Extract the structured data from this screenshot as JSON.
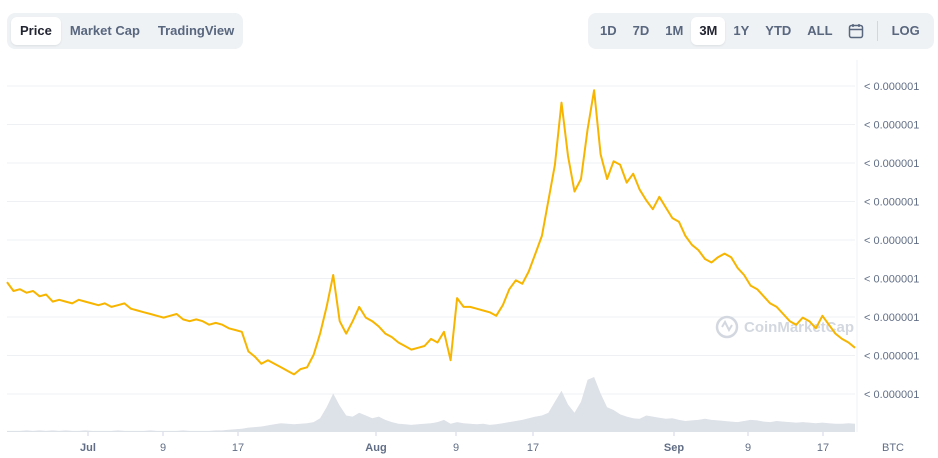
{
  "view_tabs": [
    {
      "label": "Price",
      "active": true
    },
    {
      "label": "Market Cap",
      "active": false
    },
    {
      "label": "TradingView",
      "active": false
    }
  ],
  "range_tabs": [
    {
      "label": "1D",
      "active": false
    },
    {
      "label": "7D",
      "active": false
    },
    {
      "label": "1M",
      "active": false
    },
    {
      "label": "3M",
      "active": true
    },
    {
      "label": "1Y",
      "active": false
    },
    {
      "label": "YTD",
      "active": false
    },
    {
      "label": "ALL",
      "active": false
    }
  ],
  "calendar_icon": "calendar-icon",
  "log_label": "LOG",
  "watermark": "CoinMarketCap",
  "colors": {
    "price_line": "#f7b500",
    "volume_fill": "#dde1e8",
    "grid": "#eef0f3",
    "axis_text": "#616e85"
  },
  "chart_data": {
    "type": "line",
    "y_tick_labels": [
      "< 0.000001",
      "< 0.000001",
      "< 0.000001",
      "< 0.000001",
      "< 0.000001",
      "< 0.000001",
      "< 0.000001",
      "< 0.000001",
      "< 0.000001"
    ],
    "x_tick_labels": [
      "Jul",
      "9",
      "17",
      "Aug",
      "9",
      "17",
      "Sep",
      "9",
      "17"
    ],
    "x_tick_bold": [
      true,
      false,
      false,
      true,
      false,
      false,
      true,
      false,
      false
    ],
    "currency_label": "BTC",
    "grid": true,
    "series": [
      {
        "values": [
          0.84,
          0.79,
          0.8,
          0.78,
          0.79,
          0.76,
          0.77,
          0.73,
          0.74,
          0.73,
          0.72,
          0.74,
          0.73,
          0.72,
          0.71,
          0.72,
          0.7,
          0.71,
          0.72,
          0.69,
          0.68,
          0.67,
          0.66,
          0.65,
          0.64,
          0.65,
          0.66,
          0.63,
          0.62,
          0.63,
          0.62,
          0.6,
          0.61,
          0.6,
          0.58,
          0.57,
          0.56,
          0.45,
          0.42,
          0.38,
          0.4,
          0.38,
          0.36,
          0.34,
          0.32,
          0.35,
          0.36,
          0.43,
          0.55,
          0.7,
          0.88,
          0.62,
          0.55,
          0.62,
          0.7,
          0.64,
          0.62,
          0.59,
          0.55,
          0.53,
          0.5,
          0.48,
          0.46,
          0.47,
          0.48,
          0.52,
          0.5,
          0.56,
          0.4,
          0.75,
          0.7,
          0.7,
          0.69,
          0.68,
          0.67,
          0.65,
          0.71,
          0.8,
          0.85,
          0.83,
          0.9,
          1.0,
          1.1,
          1.3,
          1.5,
          1.85,
          1.55,
          1.35,
          1.42,
          1.7,
          1.92,
          1.56,
          1.42,
          1.52,
          1.5,
          1.4,
          1.45,
          1.36,
          1.3,
          1.25,
          1.32,
          1.26,
          1.2,
          1.18,
          1.1,
          1.05,
          1.02,
          0.97,
          0.95,
          0.98,
          1.0,
          0.98,
          0.92,
          0.88,
          0.82,
          0.8,
          0.76,
          0.72,
          0.7,
          0.66,
          0.62,
          0.6,
          0.64,
          0.62,
          0.58,
          0.65,
          0.6,
          0.55,
          0.52,
          0.5,
          0.47
        ]
      }
    ],
    "volume": [
      0.02,
      0.02,
      0.02,
      0.03,
      0.02,
      0.03,
      0.02,
      0.03,
      0.02,
      0.03,
      0.02,
      0.02,
      0.03,
      0.02,
      0.02,
      0.02,
      0.02,
      0.03,
      0.02,
      0.02,
      0.02,
      0.02,
      0.03,
      0.02,
      0.02,
      0.02,
      0.02,
      0.03,
      0.02,
      0.02,
      0.02,
      0.02,
      0.03,
      0.03,
      0.04,
      0.05,
      0.06,
      0.08,
      0.09,
      0.1,
      0.12,
      0.14,
      0.16,
      0.15,
      0.14,
      0.15,
      0.16,
      0.18,
      0.25,
      0.45,
      0.7,
      0.48,
      0.3,
      0.28,
      0.35,
      0.3,
      0.25,
      0.28,
      0.22,
      0.18,
      0.15,
      0.14,
      0.13,
      0.14,
      0.15,
      0.16,
      0.18,
      0.22,
      0.15,
      0.18,
      0.16,
      0.15,
      0.14,
      0.15,
      0.13,
      0.14,
      0.16,
      0.18,
      0.2,
      0.22,
      0.25,
      0.28,
      0.3,
      0.35,
      0.55,
      0.75,
      0.5,
      0.35,
      0.55,
      0.95,
      1.0,
      0.7,
      0.45,
      0.4,
      0.32,
      0.28,
      0.25,
      0.24,
      0.3,
      0.28,
      0.26,
      0.24,
      0.25,
      0.22,
      0.2,
      0.21,
      0.22,
      0.24,
      0.22,
      0.21,
      0.2,
      0.19,
      0.18,
      0.2,
      0.22,
      0.21,
      0.19,
      0.18,
      0.2,
      0.19,
      0.18,
      0.17,
      0.18,
      0.17,
      0.16,
      0.17,
      0.16,
      0.15,
      0.15,
      0.16,
      0.15
    ]
  }
}
